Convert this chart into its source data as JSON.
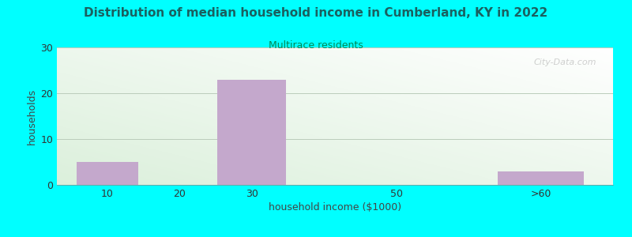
{
  "title": "Distribution of median household income in Cumberland, KY in 2022",
  "subtitle": "Multirace residents",
  "xlabel": "household income ($1000)",
  "ylabel": "households",
  "title_color": "#1a6060",
  "subtitle_color": "#008855",
  "background_color": "#00FFFF",
  "bar_color": "#C4A8CC",
  "categories": [
    "10",
    "20",
    "30",
    "50",
    ">60"
  ],
  "cat_positions": [
    1,
    2,
    3,
    5,
    7
  ],
  "values": [
    5,
    0,
    23,
    0,
    3
  ],
  "ylim": [
    0,
    30
  ],
  "yticks": [
    0,
    10,
    20,
    30
  ],
  "grid_color": "#BBCCBB",
  "watermark": "City-Data.com",
  "chart_bg_green": [
    0.86,
    0.94,
    0.86
  ],
  "chart_bg_white": [
    1.0,
    1.0,
    1.0
  ]
}
